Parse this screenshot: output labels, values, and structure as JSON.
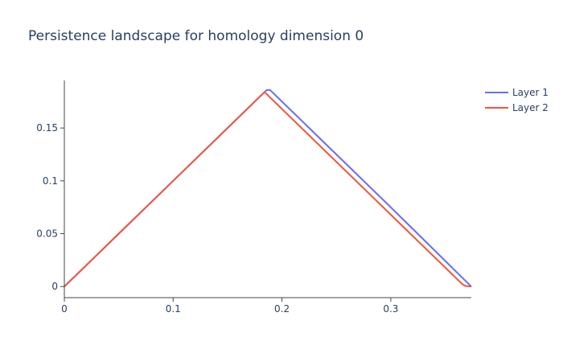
{
  "chart_data": {
    "type": "line",
    "title": "Persistence landscape for homology dimension 0",
    "xlabel": "",
    "ylabel": "",
    "xlim": [
      0,
      0.374
    ],
    "ylim": [
      -0.0105,
      0.195
    ],
    "x_ticks": [
      0,
      0.1,
      0.2,
      0.3
    ],
    "x_tick_labels": [
      "0",
      "0.1",
      "0.2",
      "0.3"
    ],
    "y_ticks": [
      0,
      0.05,
      0.1,
      0.15
    ],
    "y_tick_labels": [
      "0",
      "0.05",
      "0.1",
      "0.15"
    ],
    "grid": false,
    "legend_position": "top-right",
    "series": [
      {
        "name": "Layer 1",
        "color": "#636efa",
        "x": [
          0,
          0.1,
          0.186,
          0.189,
          0.3,
          0.372,
          0.374
        ],
        "y": [
          0,
          0.1,
          0.186,
          0.186,
          0.075,
          0.002,
          0
        ]
      },
      {
        "name": "Layer 2",
        "color": "#ef553b",
        "x": [
          0,
          0.1,
          0.184,
          0.3,
          0.366,
          0.369,
          0.374
        ],
        "y": [
          0,
          0.1,
          0.184,
          0.068,
          0.002,
          0.0005,
          0
        ]
      }
    ]
  }
}
